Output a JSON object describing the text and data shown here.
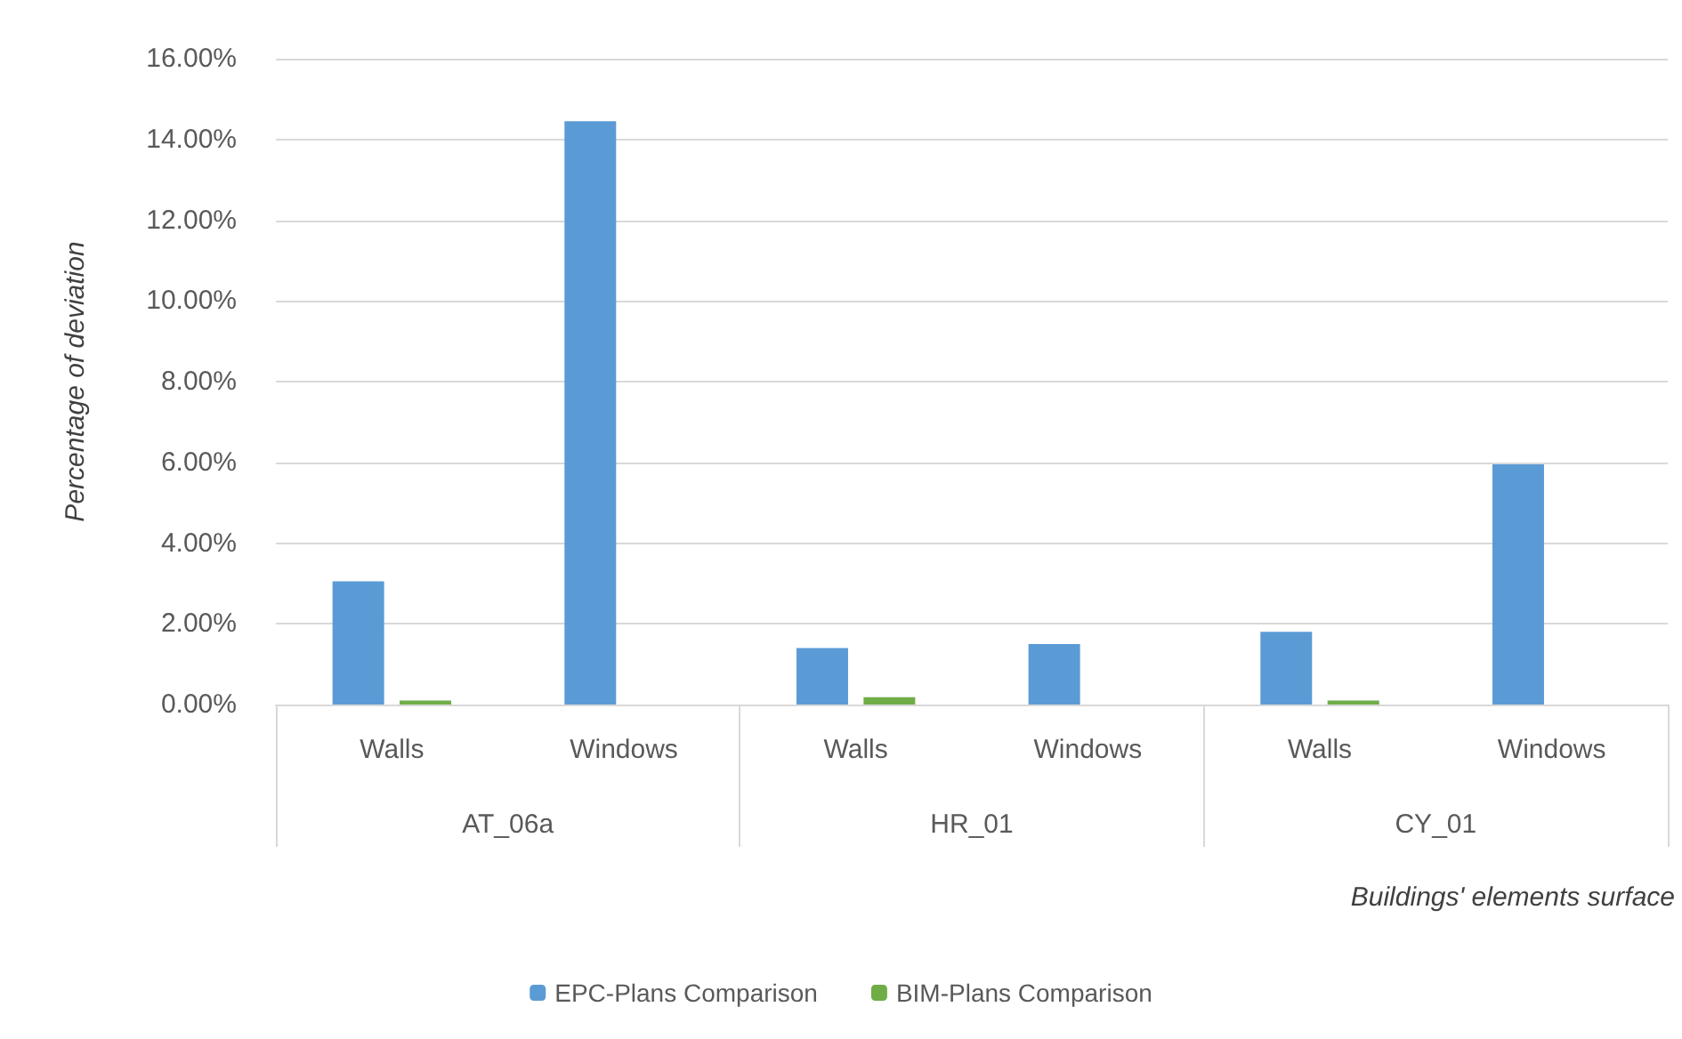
{
  "chart_data": {
    "type": "bar",
    "categories": [
      "Walls",
      "Windows",
      "Walls",
      "Windows",
      "Walls",
      "Windows"
    ],
    "annotations": [
      "AT_06a",
      "HR_01",
      "CY_01"
    ],
    "xlabel": "Buildings' elements surface",
    "ylabel": "Percentage of deviation",
    "series": [
      {
        "name": "EPC-Plans Comparison",
        "color": "#5b9bd5",
        "values": [
          3.05,
          14.45,
          1.4,
          1.5,
          1.8,
          5.95
        ]
      },
      {
        "name": "BIM-Plans Comparison",
        "color": "#70ad47",
        "values": [
          0.1,
          0,
          0.18,
          0,
          0.1,
          0
        ]
      }
    ],
    "ylim": [
      0,
      16
    ],
    "yticks": [
      {
        "value": 0,
        "label": "0.00%"
      },
      {
        "value": 2,
        "label": "2.00%"
      },
      {
        "value": 4,
        "label": "4.00%"
      },
      {
        "value": 6,
        "label": "6.00%"
      },
      {
        "value": 8,
        "label": "8.00%"
      },
      {
        "value": 10,
        "label": "10.00%"
      },
      {
        "value": 12,
        "label": "12.00%"
      },
      {
        "value": 14,
        "label": "14.00%"
      },
      {
        "value": 16,
        "label": "16.00%"
      }
    ],
    "grid": "y",
    "legend": "bottom"
  }
}
